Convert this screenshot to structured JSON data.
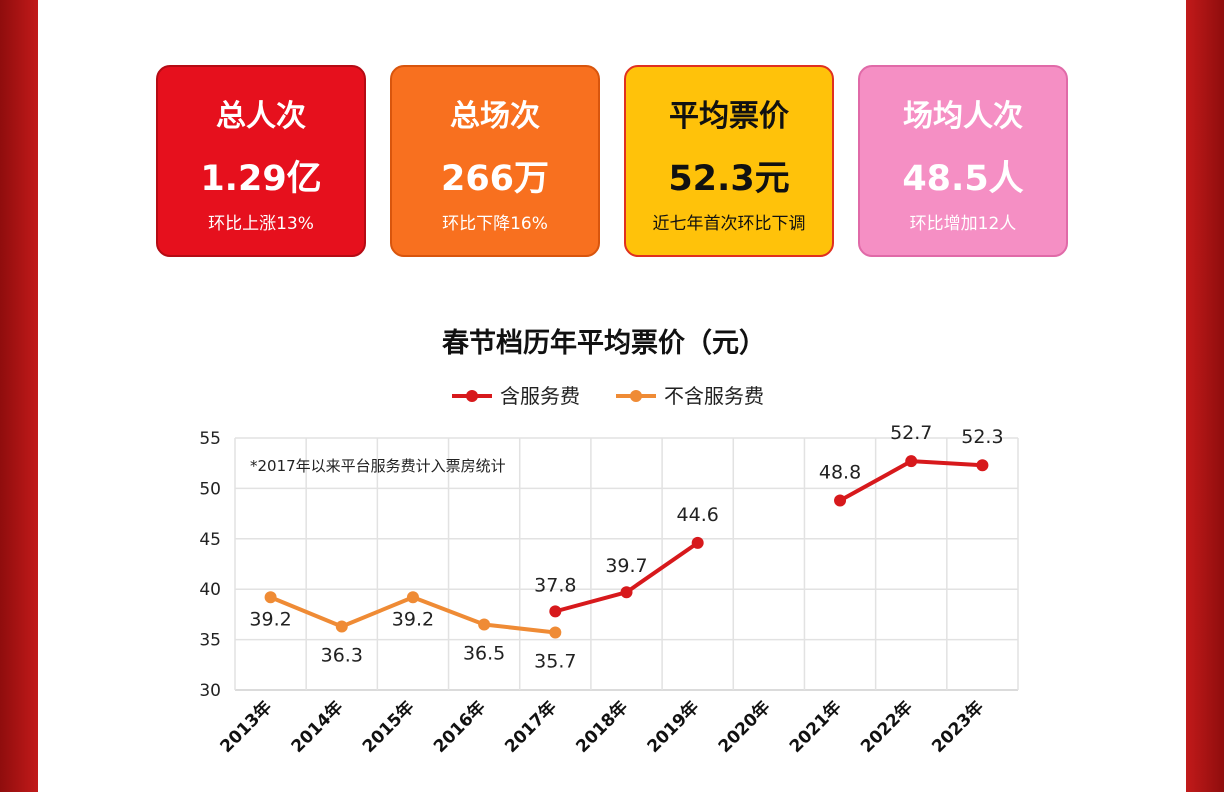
{
  "cards": [
    {
      "title": "总人次",
      "value": "1.29亿",
      "sub": "环比上涨13%"
    },
    {
      "title": "总场次",
      "value": "266万",
      "sub": "环比下降16%"
    },
    {
      "title": "平均票价",
      "value": "52.3元",
      "sub": "近七年首次环比下调"
    },
    {
      "title": "场均人次",
      "value": "48.5人",
      "sub": "环比增加12人"
    }
  ],
  "chart_data": {
    "type": "line",
    "title": "春节档历年平均票价（元）",
    "note": "*2017年以来平台服务费计入票房统计",
    "categories": [
      "2013年",
      "2014年",
      "2015年",
      "2016年",
      "2017年",
      "2018年",
      "2019年",
      "2020年",
      "2021年",
      "2022年",
      "2023年"
    ],
    "ylim": [
      30,
      55
    ],
    "yticks": [
      30,
      35,
      40,
      45,
      50,
      55
    ],
    "grid": true,
    "legend_position": "top-center",
    "series": [
      {
        "name": "含服务费",
        "color": "#d7191c",
        "values": [
          null,
          null,
          null,
          null,
          37.8,
          39.7,
          44.6,
          null,
          48.8,
          52.7,
          52.3
        ],
        "labels": [
          "",
          "",
          "",
          "",
          "37.8",
          "39.7",
          "44.6",
          "",
          "48.8",
          "52.7",
          "52.3"
        ]
      },
      {
        "name": "不含服务费",
        "color": "#ef8b35",
        "values": [
          39.2,
          36.3,
          39.2,
          36.5,
          35.7,
          null,
          null,
          null,
          null,
          null,
          null
        ],
        "labels": [
          "39.2",
          "36.3",
          "39.2",
          "36.5",
          "35.7",
          "",
          "",
          "",
          "",
          "",
          ""
        ]
      }
    ]
  }
}
